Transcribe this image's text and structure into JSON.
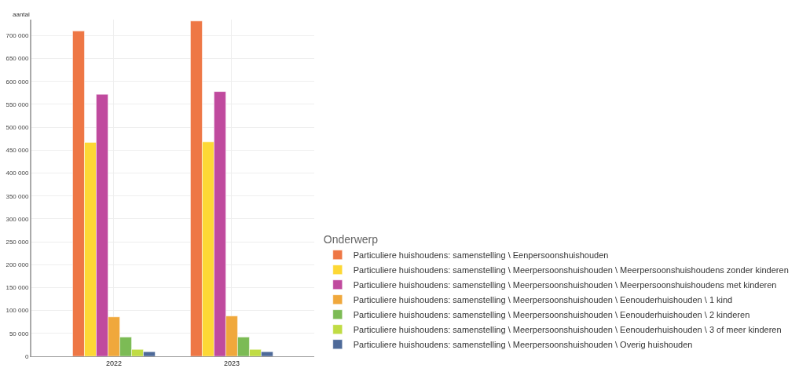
{
  "chart_data": {
    "type": "bar",
    "ylabel": "aantal",
    "legend_title": "Onderwerp",
    "categories": [
      "2022",
      "2023"
    ],
    "series": [
      {
        "name": "Particuliere huishoudens: samenstelling \\ Eenpersoonshuishouden",
        "color": "#ee7745",
        "values": [
          710000,
          732000
        ]
      },
      {
        "name": "Particuliere huishoudens: samenstelling \\ Meerpersoonshuishouden \\ Meerpersoonshuishoudens zonder kinderen",
        "color": "#fdd835",
        "values": [
          467000,
          468000
        ]
      },
      {
        "name": "Particuliere huishoudens: samenstelling \\ Meerpersoonshuishouden \\ Meerpersoonshuishoudens met kinderen",
        "color": "#c04a9e",
        "values": [
          572000,
          578000
        ]
      },
      {
        "name": "Particuliere huishoudens: samenstelling \\ Meerpersoonshuishouden \\ Eenouderhuishouden \\ 1 kind",
        "color": "#f0a83c",
        "values": [
          86000,
          88000
        ]
      },
      {
        "name": "Particuliere huishoudens: samenstelling \\ Meerpersoonshuishouden \\ Eenouderhuishouden \\ 2 kinderen",
        "color": "#7cbb55",
        "values": [
          42000,
          42000
        ]
      },
      {
        "name": "Particuliere huishoudens: samenstelling \\ Meerpersoonshuishouden \\ Eenouderhuishouden \\ 3 of meer kinderen",
        "color": "#c0dc44",
        "values": [
          15000,
          15000
        ]
      },
      {
        "name": "Particuliere huishoudens: samenstelling \\ Meerpersoonshuishouden \\ Overig huishouden",
        "color": "#4e6a99",
        "values": [
          10000,
          10000
        ]
      }
    ],
    "ylim": [
      0,
      735000
    ],
    "yticks": [
      {
        "value": 0,
        "label": "0"
      },
      {
        "value": 50000,
        "label": "50 000"
      },
      {
        "value": 100000,
        "label": "100 000"
      },
      {
        "value": 150000,
        "label": "150 000"
      },
      {
        "value": 200000,
        "label": "200 000"
      },
      {
        "value": 250000,
        "label": "250 000"
      },
      {
        "value": 300000,
        "label": "300 000"
      },
      {
        "value": 350000,
        "label": "350 000"
      },
      {
        "value": 400000,
        "label": "400 000"
      },
      {
        "value": 450000,
        "label": "450 000"
      },
      {
        "value": 500000,
        "label": "500 000"
      },
      {
        "value": 550000,
        "label": "550 000"
      },
      {
        "value": 600000,
        "label": "600 000"
      },
      {
        "value": 650000,
        "label": "650 000"
      },
      {
        "value": 700000,
        "label": "700 000"
      }
    ],
    "grid": true,
    "legend": "bottom right"
  }
}
